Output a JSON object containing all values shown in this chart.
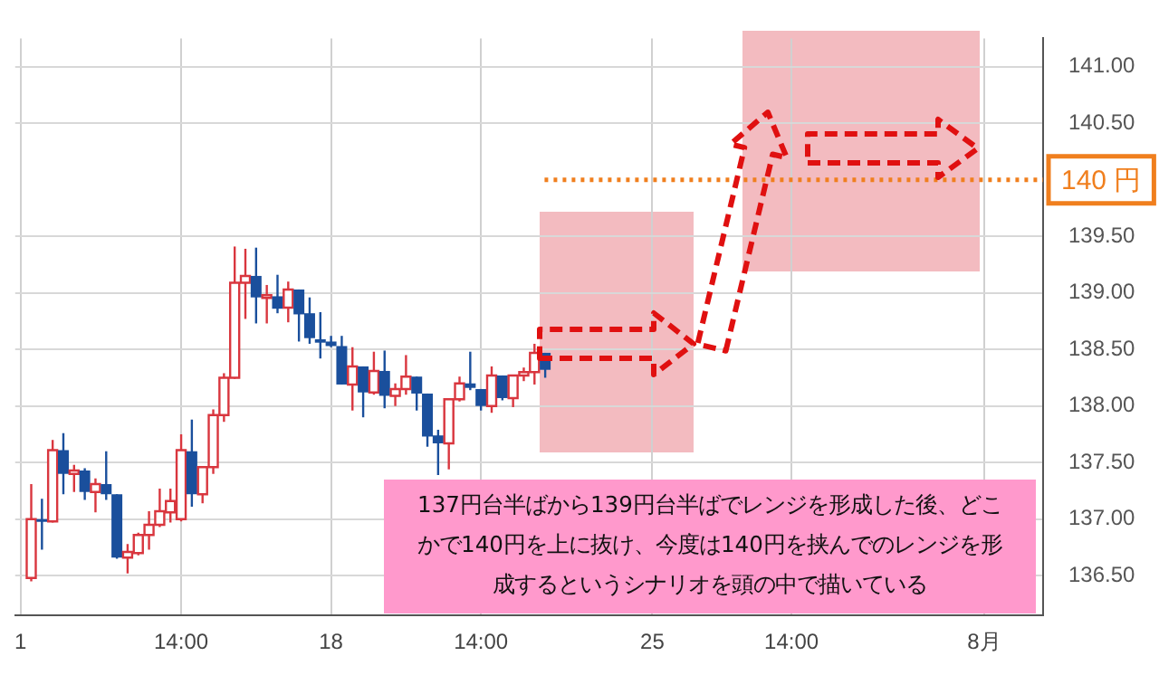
{
  "chart_data": {
    "type": "candlestick",
    "categories": [
      "1",
      null,
      null,
      null,
      null,
      null,
      null,
      null,
      null,
      null,
      null,
      null,
      null,
      null,
      null,
      "14:00",
      null,
      null,
      null,
      null,
      null,
      null,
      null,
      null,
      null,
      null,
      null,
      null,
      null,
      "18",
      null,
      null,
      null,
      null,
      null,
      null,
      null,
      null,
      null,
      null,
      null,
      null,
      null,
      "14:00",
      null,
      null,
      null,
      null,
      null,
      null,
      null,
      null,
      null,
      null,
      null,
      null,
      null,
      null,
      null,
      "25",
      null,
      null,
      null,
      null,
      null,
      null,
      null,
      null,
      null,
      null,
      null,
      null,
      "14:00",
      null,
      null,
      null,
      null,
      null,
      null,
      null,
      null,
      null,
      null,
      null,
      null,
      null,
      null,
      null,
      null,
      null,
      "8月",
      null,
      null,
      null,
      null,
      null
    ],
    "ohlc": [
      null,
      [
        136.48,
        137.31,
        136.45,
        137.0
      ],
      [
        137.0,
        137.18,
        136.73,
        136.98
      ],
      [
        136.98,
        137.7,
        136.97,
        137.61
      ],
      [
        137.61,
        137.76,
        137.22,
        137.4
      ],
      [
        137.4,
        137.48,
        137.24,
        137.43
      ],
      [
        137.43,
        137.45,
        137.17,
        137.24
      ],
      [
        137.24,
        137.36,
        137.06,
        137.31
      ],
      [
        137.31,
        137.6,
        137.17,
        137.22
      ],
      [
        137.22,
        137.22,
        136.65,
        136.66
      ],
      [
        136.66,
        136.78,
        136.52,
        136.71
      ],
      [
        136.7,
        136.88,
        136.68,
        136.86
      ],
      [
        136.86,
        137.07,
        136.73,
        136.95
      ],
      [
        136.95,
        137.27,
        136.93,
        137.07
      ],
      [
        137.06,
        137.27,
        136.97,
        137.16
      ],
      [
        137.0,
        137.75,
        136.98,
        137.61
      ],
      [
        137.6,
        137.88,
        137.11,
        137.22
      ],
      [
        137.22,
        137.46,
        137.14,
        137.46
      ],
      [
        137.46,
        137.97,
        137.4,
        137.92
      ],
      [
        137.92,
        138.29,
        137.86,
        138.25
      ],
      [
        138.25,
        139.41,
        138.24,
        139.09
      ],
      [
        139.09,
        139.39,
        138.77,
        139.15
      ],
      [
        139.15,
        139.4,
        138.73,
        138.96
      ],
      [
        138.97,
        139.07,
        138.73,
        138.98
      ],
      [
        138.97,
        139.16,
        138.82,
        138.86
      ],
      [
        138.87,
        139.1,
        138.74,
        139.03
      ],
      [
        139.03,
        139.03,
        138.57,
        138.81
      ],
      [
        138.82,
        138.96,
        138.55,
        138.6
      ],
      [
        138.59,
        138.83,
        138.42,
        138.56
      ],
      [
        138.57,
        138.62,
        138.52,
        138.53
      ],
      [
        138.53,
        138.62,
        138.19,
        138.19
      ],
      [
        138.19,
        138.52,
        137.96,
        138.35
      ],
      [
        138.35,
        138.35,
        137.9,
        138.12
      ],
      [
        138.12,
        138.48,
        138.1,
        138.31
      ],
      [
        138.31,
        138.49,
        137.98,
        138.09
      ],
      [
        138.09,
        138.2,
        138.0,
        138.15
      ],
      [
        138.15,
        138.45,
        138.1,
        138.26
      ],
      [
        138.26,
        138.26,
        137.96,
        138.11
      ],
      [
        138.11,
        138.11,
        137.64,
        137.73
      ],
      [
        137.74,
        137.79,
        137.39,
        137.67
      ],
      [
        137.67,
        138.06,
        137.44,
        138.06
      ],
      [
        138.06,
        138.26,
        138.04,
        138.2
      ],
      [
        138.2,
        138.48,
        138.14,
        138.16
      ],
      [
        138.15,
        138.15,
        137.96,
        138.0
      ],
      [
        138.0,
        138.35,
        137.94,
        138.27
      ],
      [
        138.27,
        138.27,
        138.05,
        138.07
      ],
      [
        138.07,
        138.27,
        137.99,
        138.27
      ],
      [
        138.27,
        138.34,
        138.22,
        138.3
      ],
      [
        138.3,
        138.55,
        138.19,
        138.47
      ],
      [
        138.47,
        138.47,
        138.25,
        138.32
      ],
      null,
      null,
      null,
      null,
      null,
      null,
      null,
      null,
      null,
      null,
      null,
      null,
      null,
      null,
      null,
      null,
      null,
      null,
      null,
      null,
      null,
      null,
      null,
      null,
      null,
      null,
      null,
      null,
      null,
      null,
      null,
      null,
      null,
      null,
      null,
      null,
      null,
      null,
      null,
      null,
      null,
      null,
      null,
      null,
      null,
      null
    ],
    "ylim": [
      136.15,
      141.25
    ],
    "yticks": [
      {
        "value": 136.5,
        "label": "136.50"
      },
      {
        "value": 137,
        "label": "137.00"
      },
      {
        "value": 137.5,
        "label": "137.50"
      },
      {
        "value": 138,
        "label": "138.00"
      },
      {
        "value": 138.5,
        "label": "138.50"
      },
      {
        "value": 139,
        "label": "139.00"
      },
      {
        "value": 139.5,
        "label": "139.50"
      },
      {
        "value": 140.5,
        "label": "140.50"
      },
      {
        "value": 141,
        "label": "141.00"
      }
    ],
    "grid": true,
    "ref_lines": [
      {
        "axis": "y",
        "value": 140,
        "label": "140 円",
        "color": "#f07f1e",
        "line_style": "dotted"
      }
    ],
    "annotations": [
      "137円台半ばから139円台半ばでレンジを形成した後、どこかで140円を上に抜け、今度は140円を挟んでのレンジを形成するというシナリオを頭の中で描いている"
    ]
  }
}
